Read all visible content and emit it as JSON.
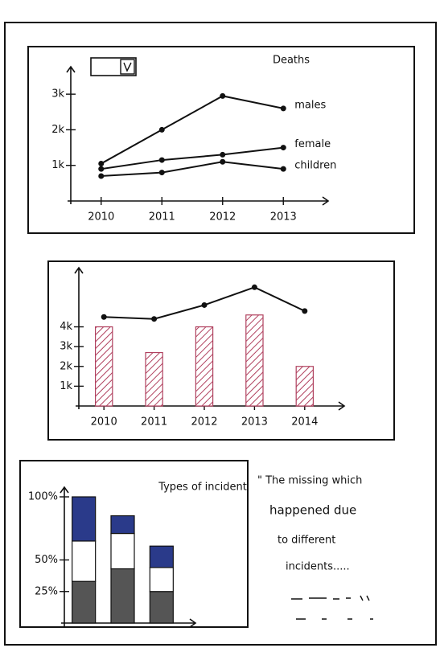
{
  "chart_data": [
    {
      "type": "line",
      "title": "Deaths",
      "categories": [
        "2010",
        "2011",
        "2012",
        "2013"
      ],
      "series": [
        {
          "name": "males",
          "color": "#111111",
          "values": [
            1050,
            2000,
            2950,
            2600
          ]
        },
        {
          "name": "female",
          "color": "#111111",
          "values": [
            900,
            1150,
            1300,
            1500
          ]
        },
        {
          "name": "children",
          "color": "#111111",
          "values": [
            700,
            800,
            1100,
            900
          ]
        }
      ],
      "ylim": [
        0,
        3500
      ],
      "yticks": [
        {
          "value": 1000,
          "label": "1k"
        },
        {
          "value": 2000,
          "label": "2k"
        },
        {
          "value": 3000,
          "label": "3k"
        }
      ]
    },
    {
      "type": "combo",
      "categories": [
        "2010",
        "2011",
        "2012",
        "2013",
        "2014"
      ],
      "series": [
        {
          "type": "bar",
          "color": "#b0405e",
          "values": [
            4000,
            2700,
            4000,
            4600,
            2000
          ]
        },
        {
          "type": "line",
          "color": "#111111",
          "values": [
            4500,
            4400,
            5100,
            6000,
            4800
          ]
        }
      ],
      "ylim": [
        0,
        6500
      ],
      "yticks": [
        {
          "value": 1000,
          "label": "1k"
        },
        {
          "value": 2000,
          "label": "2k"
        },
        {
          "value": 3000,
          "label": "3k"
        },
        {
          "value": 4000,
          "label": "4k"
        }
      ]
    },
    {
      "type": "stacked_bar",
      "title": "Types of incident",
      "categories": [
        null,
        null,
        null
      ],
      "series": [
        {
          "color": "#555555",
          "values": [
            33,
            43,
            25
          ]
        },
        {
          "color": "#ffffff",
          "values": [
            32,
            28,
            19
          ]
        },
        {
          "color": "#2a3a8a",
          "values": [
            35,
            14,
            17
          ]
        }
      ],
      "ylim": [
        0,
        100
      ],
      "yticks": [
        {
          "value": 25,
          "label": "25%"
        },
        {
          "value": 50,
          "label": "50%"
        },
        {
          "value": 100,
          "label": "100%"
        }
      ]
    }
  ],
  "note": {
    "lines": [
      "\" The missing which",
      "happened due",
      "to different",
      "incidents....."
    ]
  }
}
